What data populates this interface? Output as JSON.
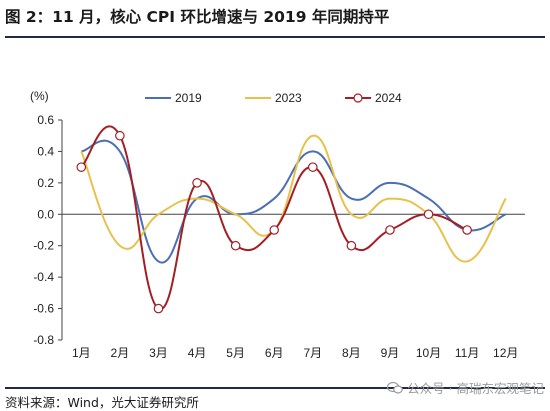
{
  "title": "图 2：11 月，核心 CPI 环比增速与 2019 年同期持平",
  "source": "资料来源：Wind，光大证券研究所",
  "watermark": "公众号 · 高瑞东宏观笔记",
  "chart_data": {
    "type": "line",
    "ylabel": "(%)",
    "ylim": [
      -0.8,
      0.6
    ],
    "yticks": [
      0.6,
      0.4,
      0.2,
      0.0,
      -0.2,
      -0.4,
      -0.6,
      -0.8
    ],
    "ytick_labels": [
      "0.6",
      "0.4",
      "0.2",
      "0.0",
      "-0.2",
      "-0.4",
      "-0.6",
      "-0.8"
    ],
    "categories": [
      "1月",
      "2月",
      "3月",
      "4月",
      "5月",
      "6月",
      "7月",
      "8月",
      "9月",
      "10月",
      "11月",
      "12月"
    ],
    "legend_position": "top",
    "series": [
      {
        "name": "2019",
        "color": "#4a6fb5",
        "marker": "none",
        "values": [
          0.4,
          0.4,
          -0.3,
          0.1,
          0.0,
          0.1,
          0.4,
          0.1,
          0.2,
          0.1,
          -0.1,
          0.0
        ]
      },
      {
        "name": "2023",
        "color": "#e8c14a",
        "marker": "none",
        "values": [
          0.4,
          -0.2,
          0.0,
          0.1,
          0.0,
          -0.1,
          0.5,
          0.0,
          0.1,
          0.0,
          -0.3,
          0.1
        ]
      },
      {
        "name": "2024",
        "color": "#a31f24",
        "marker": "circle",
        "values": [
          0.3,
          0.5,
          -0.6,
          0.2,
          -0.2,
          -0.1,
          0.3,
          -0.2,
          -0.1,
          0.0,
          -0.1,
          null
        ]
      }
    ]
  }
}
